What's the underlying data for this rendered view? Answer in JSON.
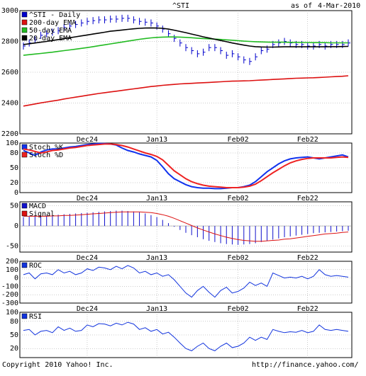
{
  "header": {
    "ticker": "^STI",
    "as_of_label": "as of",
    "as_of_date": "4-Mar-2010"
  },
  "footer": {
    "copyright": "Copyright 2010 Yahoo! Inc.",
    "url": "http://finance.yahoo.com/"
  },
  "colors": {
    "price_bars": "#0000cc",
    "ema200": "#dd1111",
    "ema50": "#22bb22",
    "ema20": "#000000",
    "stoch_k": "#1133ee",
    "stoch_d": "#ee2222",
    "macd": "#1111cc",
    "signal": "#dd1111",
    "roc": "#1133dd",
    "rsi": "#1133dd",
    "grid": "#999999"
  },
  "x_axis": {
    "ticks": [
      "Dec24",
      "Jan13",
      "Feb02",
      "Feb22"
    ]
  },
  "chart_data": [
    {
      "type": "line",
      "panel": "price",
      "title": "^STI",
      "ylim": [
        2200,
        3000
      ],
      "yticks": [
        "2200",
        "2400",
        "2600",
        "2800",
        "3000"
      ],
      "grid": true,
      "legend_position": "top-left",
      "series": [
        {
          "name": "^STI - Daily",
          "style": "bars",
          "values": [
            2770,
            2790,
            2810,
            2840,
            2850,
            2860,
            2870,
            2890,
            2900,
            2910,
            2920,
            2930,
            2935,
            2940,
            2940,
            2945,
            2945,
            2950,
            2950,
            2940,
            2930,
            2925,
            2920,
            2900,
            2880,
            2850,
            2820,
            2790,
            2760,
            2740,
            2720,
            2730,
            2760,
            2760,
            2740,
            2710,
            2720,
            2700,
            2680,
            2670,
            2700,
            2740,
            2750,
            2780,
            2790,
            2800,
            2790,
            2780,
            2780,
            2770,
            2770,
            2780,
            2770,
            2780,
            2780,
            2780,
            2790
          ]
        },
        {
          "name": "200-day EMA",
          "values": [
            2380,
            2387,
            2394,
            2401,
            2407,
            2413,
            2419,
            2426,
            2432,
            2438,
            2444,
            2450,
            2456,
            2462,
            2467,
            2472,
            2477,
            2482,
            2487,
            2492,
            2497,
            2502,
            2507,
            2511,
            2515,
            2518,
            2521,
            2524,
            2526,
            2528,
            2530,
            2532,
            2534,
            2536,
            2538,
            2540,
            2542,
            2543,
            2544,
            2545,
            2547,
            2549,
            2551,
            2553,
            2555,
            2557,
            2559,
            2561,
            2562,
            2563,
            2564,
            2566,
            2568,
            2570,
            2572,
            2574,
            2577
          ]
        },
        {
          "name": "50-day EMA",
          "values": [
            2710,
            2714,
            2718,
            2722,
            2726,
            2730,
            2735,
            2740,
            2745,
            2750,
            2755,
            2760,
            2766,
            2772,
            2778,
            2784,
            2790,
            2796,
            2802,
            2808,
            2814,
            2819,
            2823,
            2826,
            2828,
            2829,
            2829,
            2828,
            2826,
            2824,
            2821,
            2819,
            2817,
            2815,
            2813,
            2810,
            2808,
            2805,
            2802,
            2800,
            2798,
            2797,
            2796,
            2795,
            2795,
            2795,
            2794,
            2794,
            2793,
            2793,
            2792,
            2792,
            2792,
            2791,
            2791,
            2791,
            2791
          ]
        },
        {
          "name": "20-day EMA",
          "values": [
            2780,
            2785,
            2790,
            2795,
            2800,
            2806,
            2812,
            2818,
            2824,
            2830,
            2836,
            2842,
            2848,
            2854,
            2860,
            2866,
            2870,
            2874,
            2878,
            2882,
            2885,
            2887,
            2888,
            2887,
            2885,
            2880,
            2873,
            2865,
            2857,
            2848,
            2839,
            2830,
            2822,
            2814,
            2806,
            2798,
            2790,
            2783,
            2776,
            2770,
            2766,
            2764,
            2763,
            2763,
            2764,
            2765,
            2765,
            2765,
            2765,
            2765,
            2765,
            2765,
            2765,
            2766,
            2766,
            2767,
            2768
          ]
        }
      ]
    },
    {
      "type": "line",
      "panel": "stochastic",
      "ylim": [
        0,
        100
      ],
      "yticks": [
        "0",
        "20",
        "50",
        "80",
        "100"
      ],
      "grid": true,
      "legend_position": "top-left",
      "series": [
        {
          "name": "Stoch %K",
          "values": [
            85,
            80,
            75,
            82,
            86,
            88,
            88,
            90,
            92,
            93,
            95,
            97,
            98,
            99,
            99,
            98,
            96,
            90,
            85,
            82,
            78,
            75,
            72,
            65,
            52,
            38,
            28,
            22,
            16,
            12,
            10,
            9,
            9,
            8,
            8,
            9,
            10,
            10,
            12,
            15,
            22,
            32,
            42,
            50,
            58,
            64,
            68,
            70,
            71,
            72,
            70,
            68,
            70,
            72,
            74,
            76,
            72
          ]
        },
        {
          "name": "Stoch %D",
          "values": [
            88,
            86,
            83,
            80,
            82,
            85,
            86,
            88,
            90,
            91,
            93,
            95,
            96,
            97,
            98,
            98,
            97,
            95,
            92,
            88,
            84,
            80,
            77,
            73,
            66,
            55,
            44,
            36,
            28,
            22,
            18,
            15,
            13,
            12,
            11,
            10,
            10,
            10,
            11,
            13,
            17,
            24,
            32,
            40,
            47,
            54,
            60,
            64,
            67,
            69,
            70,
            70,
            70,
            70,
            71,
            72,
            71
          ]
        }
      ]
    },
    {
      "type": "bar",
      "panel": "macd",
      "ylim": [
        -65,
        60
      ],
      "yticks": [
        "50",
        "0",
        "-50"
      ],
      "grid": true,
      "legend_position": "top-left",
      "series": [
        {
          "name": "MACD",
          "style": "bars",
          "values": [
            22,
            23,
            24,
            25,
            26,
            27,
            28,
            29,
            30,
            31,
            32,
            33,
            34,
            35,
            36,
            37,
            38,
            38,
            37,
            36,
            34,
            31,
            27,
            22,
            15,
            7,
            -2,
            -10,
            -17,
            -23,
            -28,
            -33,
            -37,
            -40,
            -43,
            -45,
            -46,
            -47,
            -46,
            -45,
            -43,
            -40,
            -37,
            -34,
            -31,
            -28,
            -26,
            -24,
            -22,
            -20,
            -18,
            -17,
            -16,
            -15,
            -14,
            -13,
            -12
          ]
        },
        {
          "name": "Signal",
          "values": [
            24,
            24,
            24,
            24,
            24,
            25,
            25,
            26,
            26,
            27,
            28,
            29,
            30,
            31,
            32,
            33,
            34,
            35,
            35,
            35,
            35,
            34,
            33,
            31,
            28,
            24,
            19,
            13,
            7,
            1,
            -5,
            -10,
            -15,
            -20,
            -24,
            -28,
            -31,
            -34,
            -36,
            -37,
            -38,
            -38,
            -37,
            -36,
            -35,
            -33,
            -32,
            -30,
            -28,
            -26,
            -24,
            -22,
            -20,
            -19,
            -18,
            -16,
            -15
          ]
        }
      ]
    },
    {
      "type": "line",
      "panel": "roc",
      "ylim": [
        -300,
        200
      ],
      "yticks": [
        "200",
        "100",
        "0",
        "-100",
        "-200",
        "-300"
      ],
      "grid": true,
      "legend_position": "top-left",
      "series": [
        {
          "name": "ROC",
          "values": [
            40,
            60,
            -10,
            50,
            60,
            40,
            100,
            60,
            80,
            40,
            60,
            110,
            90,
            130,
            120,
            100,
            140,
            110,
            150,
            120,
            60,
            80,
            40,
            60,
            20,
            40,
            -20,
            -100,
            -180,
            -230,
            -150,
            -100,
            -170,
            -230,
            -150,
            -110,
            -180,
            -160,
            -120,
            -50,
            -90,
            -60,
            -100,
            60,
            30,
            0,
            10,
            0,
            20,
            -10,
            20,
            100,
            40,
            20,
            30,
            20,
            10
          ]
        }
      ]
    },
    {
      "type": "line",
      "panel": "rsi",
      "ylim": [
        0,
        100
      ],
      "yticks": [
        "20",
        "50",
        "80",
        "100"
      ],
      "grid": true,
      "legend_position": "top-left",
      "series": [
        {
          "name": "RSI",
          "values": [
            60,
            62,
            50,
            58,
            60,
            55,
            68,
            60,
            65,
            58,
            60,
            72,
            68,
            75,
            74,
            70,
            76,
            72,
            78,
            74,
            62,
            66,
            58,
            62,
            52,
            56,
            45,
            32,
            20,
            15,
            25,
            32,
            20,
            15,
            25,
            32,
            22,
            25,
            32,
            45,
            38,
            45,
            40,
            62,
            58,
            55,
            57,
            56,
            60,
            55,
            58,
            72,
            62,
            60,
            62,
            60,
            58
          ]
        }
      ]
    }
  ]
}
